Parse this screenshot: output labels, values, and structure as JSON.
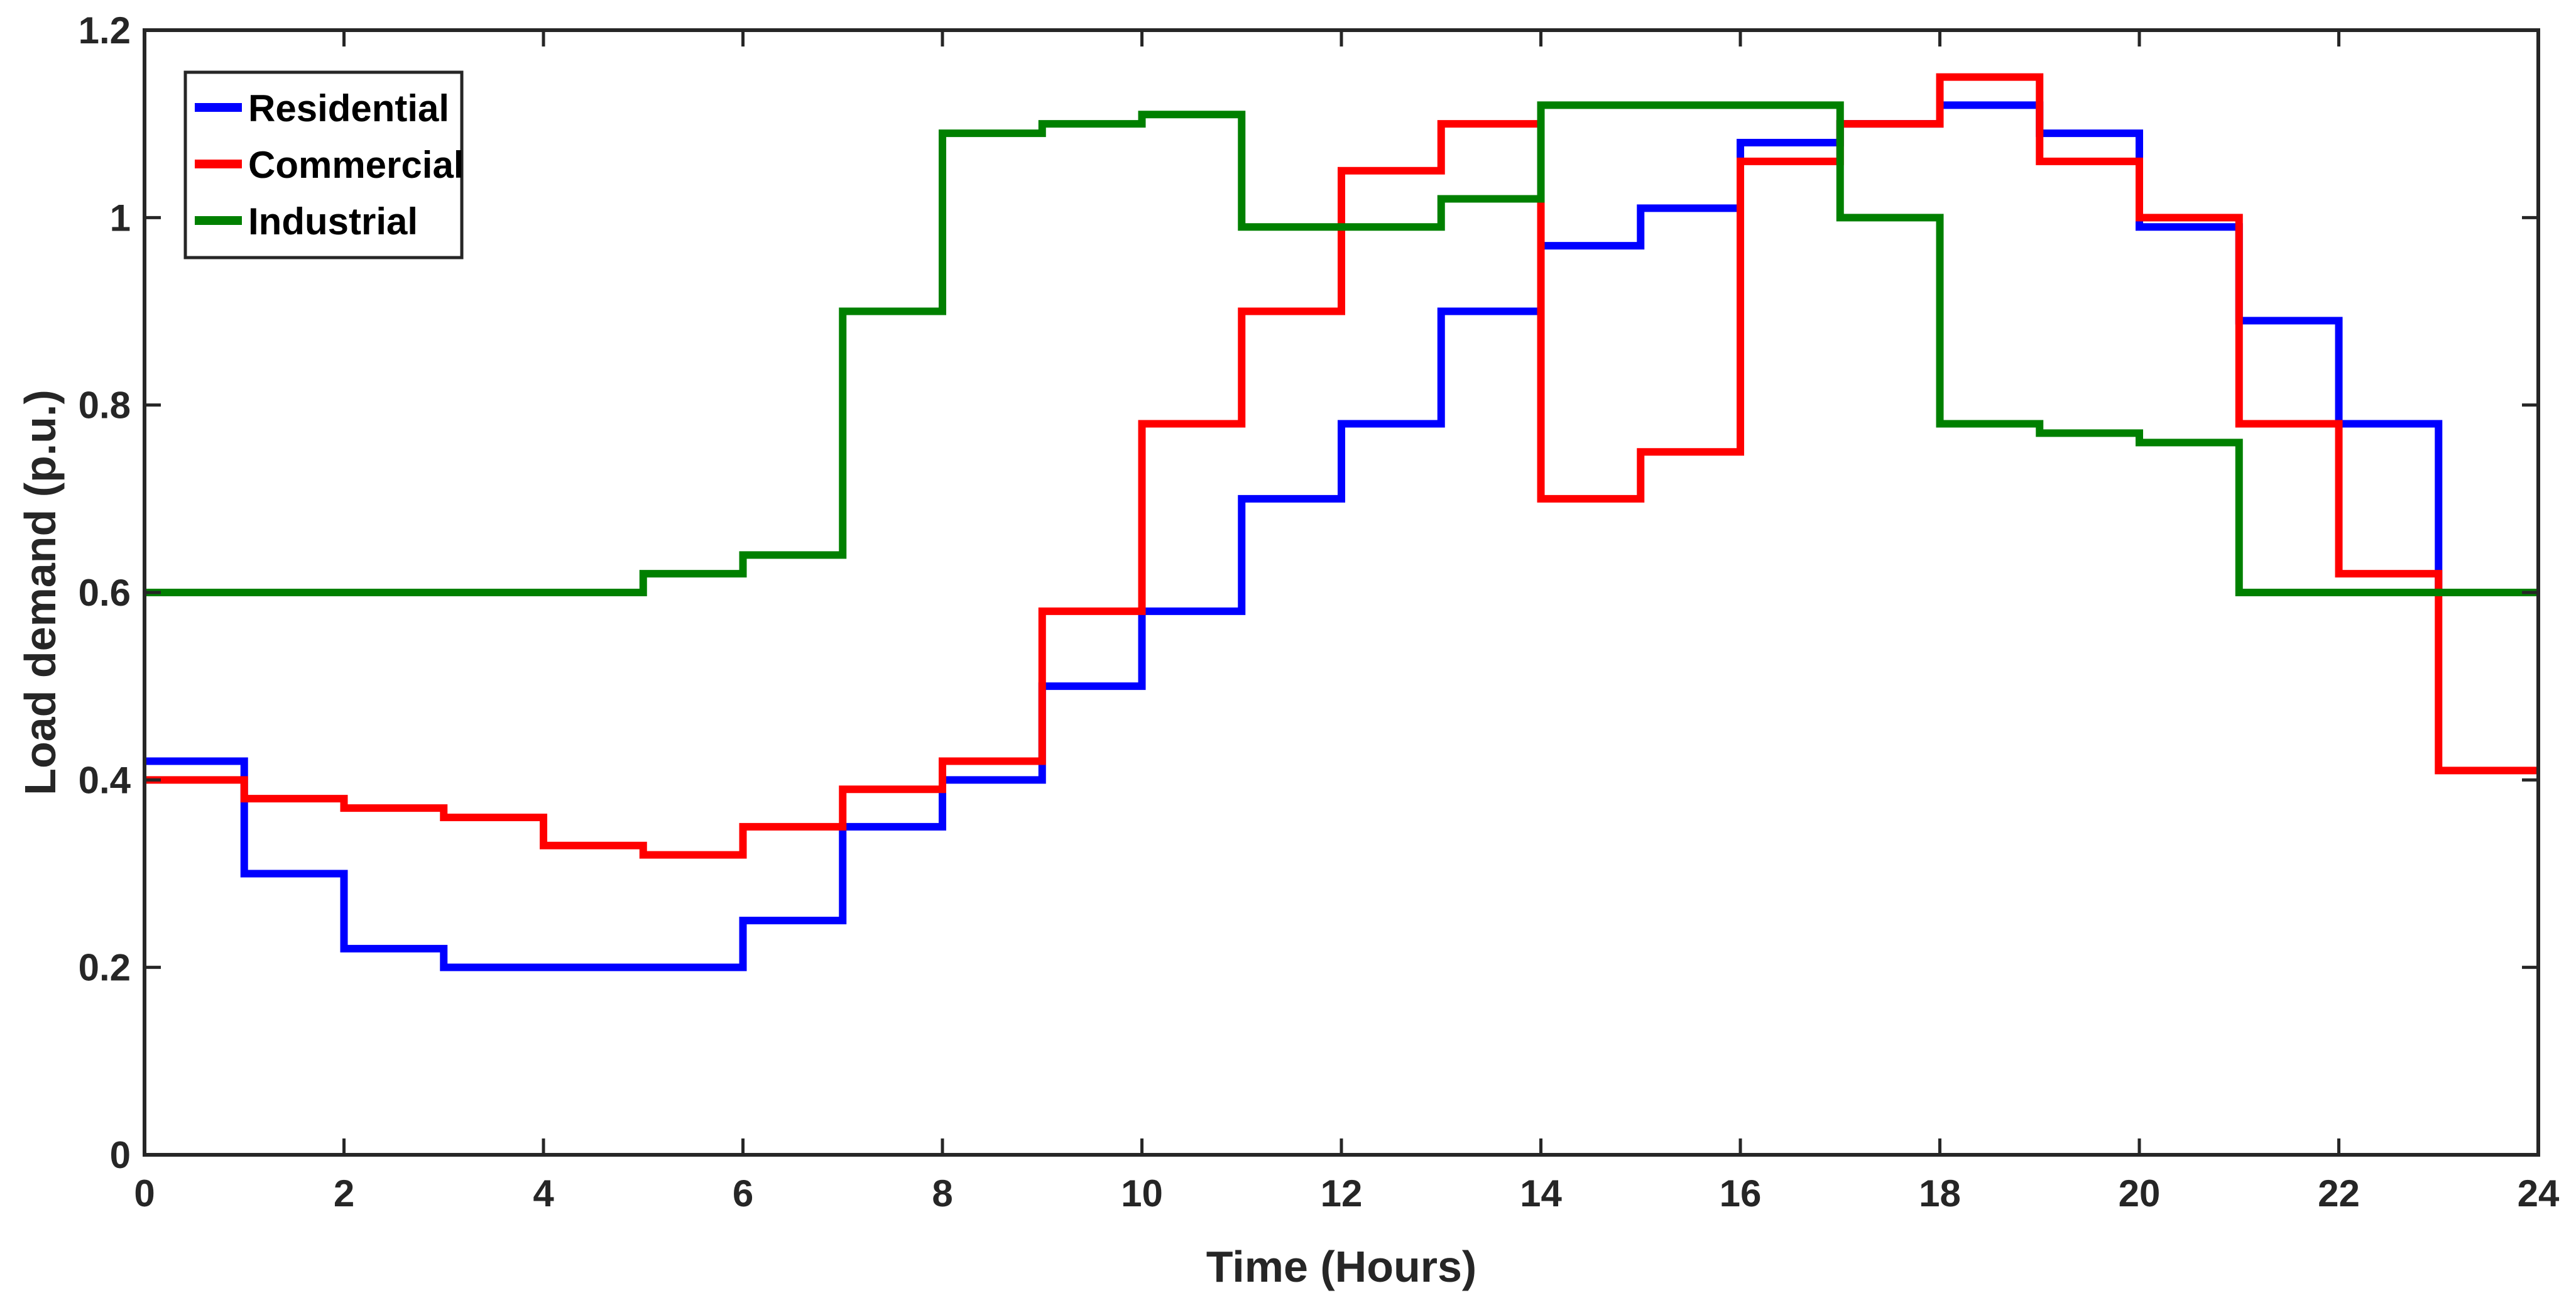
{
  "chart_data": {
    "type": "line",
    "step": "post",
    "title": "",
    "xlabel": "Time (Hours)",
    "ylabel": "Load demand (p.u.)",
    "xlim": [
      0,
      24
    ],
    "ylim": [
      0,
      1.2
    ],
    "xticks": [
      0,
      2,
      4,
      6,
      8,
      10,
      12,
      14,
      16,
      18,
      20,
      22,
      24
    ],
    "yticks": [
      0,
      0.2,
      0.4,
      0.6,
      0.8,
      1,
      1.2
    ],
    "ytick_labels": [
      "0",
      "0.2",
      "0.4",
      "0.6",
      "0.8",
      "1",
      "1.2"
    ],
    "legend_position": "top-left",
    "grid": false,
    "x": [
      0,
      1,
      2,
      3,
      4,
      5,
      6,
      7,
      8,
      9,
      10,
      11,
      12,
      13,
      14,
      15,
      16,
      17,
      18,
      19,
      20,
      21,
      22,
      23,
      24
    ],
    "series": [
      {
        "name": "Residential",
        "color": "#0000ff",
        "values": [
          0.42,
          0.3,
          0.22,
          0.2,
          0.2,
          0.2,
          0.25,
          0.35,
          0.4,
          0.5,
          0.58,
          0.7,
          0.78,
          0.9,
          0.97,
          1.01,
          1.08,
          1.1,
          1.12,
          1.09,
          0.99,
          0.89,
          0.78,
          0.6,
          0.6
        ]
      },
      {
        "name": "Commercial",
        "color": "#ff0000",
        "values": [
          0.4,
          0.38,
          0.37,
          0.36,
          0.33,
          0.32,
          0.35,
          0.39,
          0.42,
          0.58,
          0.78,
          0.9,
          1.05,
          1.1,
          0.7,
          0.75,
          1.06,
          1.1,
          1.15,
          1.06,
          1.0,
          0.78,
          0.62,
          0.41,
          0.41
        ]
      },
      {
        "name": "Industrial",
        "color": "#008000",
        "values": [
          0.6,
          0.6,
          0.6,
          0.6,
          0.6,
          0.62,
          0.64,
          0.9,
          1.09,
          1.1,
          1.11,
          0.99,
          0.99,
          1.02,
          1.12,
          1.12,
          1.12,
          1.0,
          0.78,
          0.77,
          0.76,
          0.6,
          0.6,
          0.6,
          0.6
        ]
      }
    ]
  }
}
